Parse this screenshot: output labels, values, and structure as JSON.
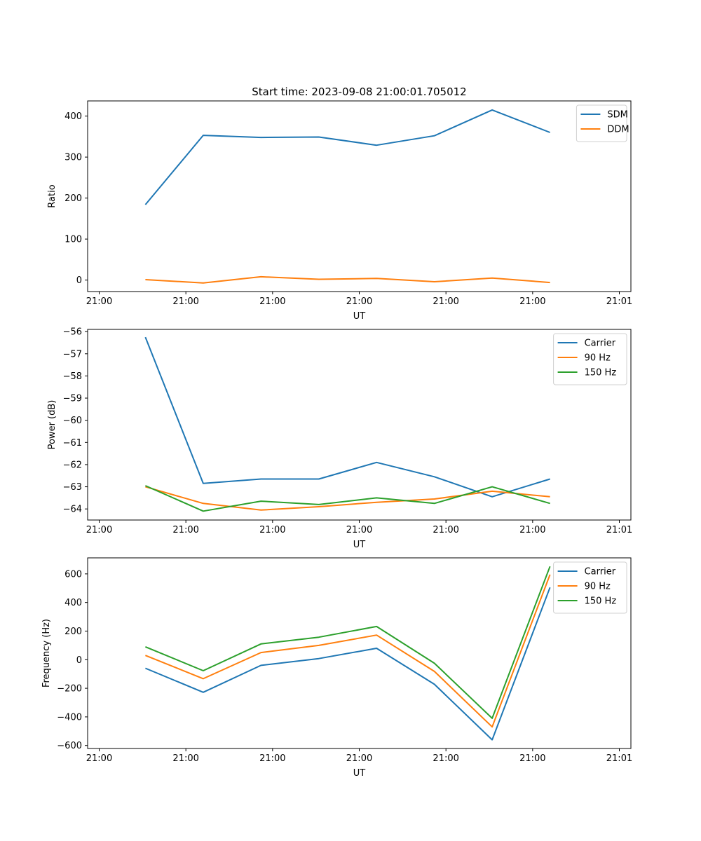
{
  "figure_title": "Start time: 2023-09-08 21:00:01.705012",
  "colors": {
    "blue": "#1f77b4",
    "orange": "#ff7f0e",
    "green": "#2ca02c"
  },
  "chart_data": [
    {
      "type": "line",
      "title": "Start time: 2023-09-08 21:00:01.705012",
      "xlabel": "UT",
      "ylabel": "Ratio",
      "x": [
        1,
        2,
        3,
        4,
        5,
        6,
        7,
        8
      ],
      "xlim": [
        0,
        9.4
      ],
      "x_ticks": [
        0.2,
        1.7,
        3.2,
        4.7,
        6.2,
        7.7,
        9.2
      ],
      "x_tick_labels": [
        "21:00",
        "21:00",
        "21:00",
        "21:00",
        "21:00",
        "21:00",
        "21:01"
      ],
      "ylim": [
        -28,
        437
      ],
      "y_ticks": [
        0,
        100,
        200,
        300,
        400
      ],
      "y_tick_labels": [
        "0",
        "100",
        "200",
        "300",
        "400"
      ],
      "legend": "top-right",
      "series": [
        {
          "name": "SDM",
          "color": "#1f77b4",
          "values": [
            184,
            353,
            348,
            349,
            329,
            352,
            415,
            360
          ]
        },
        {
          "name": "DDM",
          "color": "#ff7f0e",
          "values": [
            1,
            -7,
            8,
            2,
            4,
            -4,
            5,
            -6
          ]
        }
      ]
    },
    {
      "type": "line",
      "xlabel": "UT",
      "ylabel": "Power (dB)",
      "x": [
        1,
        2,
        3,
        4,
        5,
        6,
        7,
        8
      ],
      "xlim": [
        0,
        9.4
      ],
      "x_ticks": [
        0.2,
        1.7,
        3.2,
        4.7,
        6.2,
        7.7,
        9.2
      ],
      "x_tick_labels": [
        "21:00",
        "21:00",
        "21:00",
        "21:00",
        "21:00",
        "21:00",
        "21:01"
      ],
      "ylim": [
        -64.5,
        -55.9
      ],
      "y_ticks": [
        -56,
        -57,
        -58,
        -59,
        -60,
        -61,
        -62,
        -63,
        -64
      ],
      "y_tick_labels": [
        "−56",
        "−57",
        "−58",
        "−59",
        "−60",
        "−61",
        "−62",
        "−63",
        "−64"
      ],
      "legend": "top-right",
      "series": [
        {
          "name": "Carrier",
          "color": "#1f77b4",
          "values": [
            -56.25,
            -62.85,
            -62.65,
            -62.65,
            -61.9,
            -62.55,
            -63.45,
            -62.65
          ]
        },
        {
          "name": "90 Hz",
          "color": "#ff7f0e",
          "values": [
            -63.0,
            -63.75,
            -64.05,
            -63.9,
            -63.7,
            -63.55,
            -63.2,
            -63.45
          ]
        },
        {
          "name": "150 Hz",
          "color": "#2ca02c",
          "values": [
            -62.95,
            -64.1,
            -63.65,
            -63.8,
            -63.5,
            -63.75,
            -63.0,
            -63.75
          ]
        }
      ]
    },
    {
      "type": "line",
      "xlabel": "UT",
      "ylabel": "Frequency (Hz)",
      "x": [
        1,
        2,
        3,
        4,
        5,
        6,
        7,
        8
      ],
      "xlim": [
        0,
        9.4
      ],
      "x_ticks": [
        0.2,
        1.7,
        3.2,
        4.7,
        6.2,
        7.7,
        9.2
      ],
      "x_tick_labels": [
        "21:00",
        "21:00",
        "21:00",
        "21:00",
        "21:00",
        "21:00",
        "21:01"
      ],
      "ylim": [
        -621,
        712
      ],
      "y_ticks": [
        -600,
        -400,
        -200,
        0,
        200,
        400,
        600
      ],
      "y_tick_labels": [
        "−600",
        "−400",
        "−200",
        "0",
        "200",
        "400",
        "600"
      ],
      "legend": "top-right",
      "series": [
        {
          "name": "Carrier",
          "color": "#1f77b4",
          "values": [
            -60,
            -228,
            -40,
            8,
            80,
            -172,
            -560,
            505
          ]
        },
        {
          "name": "90 Hz",
          "color": "#ff7f0e",
          "values": [
            30,
            -133,
            50,
            100,
            172,
            -82,
            -470,
            595
          ]
        },
        {
          "name": "150 Hz",
          "color": "#2ca02c",
          "values": [
            90,
            -77,
            110,
            157,
            232,
            -25,
            -410,
            652
          ]
        }
      ]
    }
  ]
}
